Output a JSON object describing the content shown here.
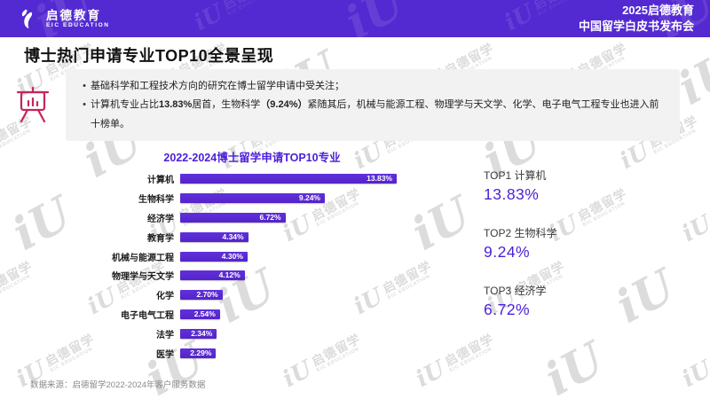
{
  "header": {
    "logo_cn": "启德教育",
    "logo_en": "EIC EDUCATION",
    "right_line1": "2025启德教育",
    "right_line2": "中国留学白皮书发布会"
  },
  "page": {
    "title": "博士热门申请专业TOP10全景呈现",
    "bullet_marker": "•",
    "bullets": [
      {
        "segments": [
          {
            "t": "基础科学和工程技术方向的研究在博士留学申请中受关注；",
            "b": false
          }
        ]
      },
      {
        "segments": [
          {
            "t": "计算机专业占比",
            "b": false
          },
          {
            "t": "13.83%",
            "b": true
          },
          {
            "t": "居首，生物科学",
            "b": false
          },
          {
            "t": "（9.24%）",
            "b": true
          },
          {
            "t": "紧随其后，机械与能源工程、物理学与天文学、化学、电子电气工程专业也进入前十榜单。",
            "b": false
          }
        ]
      }
    ],
    "source": "数据来源：启德留学2022-2024年客户服务数据"
  },
  "chart_data": {
    "type": "bar",
    "orientation": "horizontal",
    "title": "2022-2024博士留学申请TOP10专业",
    "categories": [
      "计算机",
      "生物科学",
      "经济学",
      "教育学",
      "机械与能源工程",
      "物理学与天文学",
      "化学",
      "电子电气工程",
      "法学",
      "医学"
    ],
    "values": [
      13.83,
      9.24,
      6.72,
      4.34,
      4.3,
      4.12,
      2.7,
      2.54,
      2.34,
      2.29
    ],
    "value_labels": [
      "13.83%",
      "9.24%",
      "6.72%",
      "4.34%",
      "4.30%",
      "4.12%",
      "2.70%",
      "2.54%",
      "2.34%",
      "2.29%"
    ],
    "xlim": [
      0,
      14.5
    ],
    "grid": false,
    "legend": "none",
    "bar_color": "#5829d3"
  },
  "highlights": [
    {
      "label": "TOP1 计算机",
      "value": "13.83%"
    },
    {
      "label": "TOP2 生物科学",
      "value": "9.24%"
    },
    {
      "label": "TOP3 经济学",
      "value": "6.72%"
    }
  ],
  "watermark": {
    "glyph": "iU",
    "cn": "启德留学",
    "en": "EIC EDUCATION"
  },
  "colors": {
    "header_bg": "#5329d1",
    "bar_purple": "#5829d3",
    "highlight_purple": "#4b1fd6",
    "icon_pink": "#c4265e"
  }
}
